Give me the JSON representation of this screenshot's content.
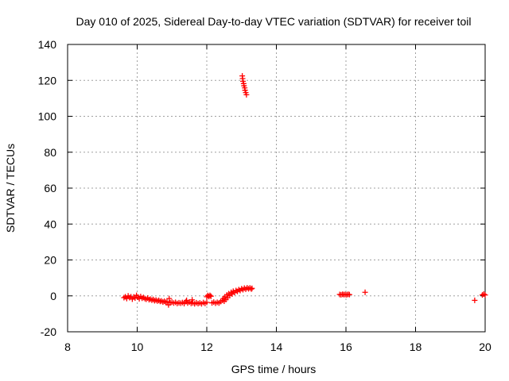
{
  "chart_data": {
    "type": "scatter",
    "title": "Day 010 of 2025, Sidereal Day-to-day VTEC variation (SDTVAR) for receiver toil",
    "xlabel": "GPS time / hours",
    "ylabel": "SDTVAR / TECUs",
    "xlim": [
      8,
      20
    ],
    "ylim": [
      -20,
      140
    ],
    "xticks": [
      8,
      10,
      12,
      14,
      16,
      18,
      20
    ],
    "yticks": [
      -20,
      0,
      20,
      40,
      60,
      80,
      100,
      120,
      140
    ],
    "grid": true,
    "marker": "+",
    "colors": {
      "marker": "#ff0000",
      "grid": "#a0a0a0",
      "axis": "#000000"
    },
    "series": [
      {
        "name": "SDTVAR",
        "points": [
          [
            9.62,
            -1.0
          ],
          [
            9.66,
            -0.5
          ],
          [
            9.7,
            -1.5
          ],
          [
            9.74,
            0.0
          ],
          [
            9.78,
            -1.0
          ],
          [
            9.82,
            -0.5
          ],
          [
            9.86,
            -1.8
          ],
          [
            9.9,
            -0.6
          ],
          [
            9.94,
            -1.2
          ],
          [
            9.98,
            0.3
          ],
          [
            10.02,
            -0.8
          ],
          [
            10.06,
            -1.6
          ],
          [
            10.1,
            -0.4
          ],
          [
            10.14,
            -1.3
          ],
          [
            10.18,
            -0.9
          ],
          [
            10.22,
            -1.5
          ],
          [
            10.26,
            -1.9
          ],
          [
            10.3,
            -1.2
          ],
          [
            10.34,
            -2.1
          ],
          [
            10.38,
            -1.8
          ],
          [
            10.42,
            -2.4
          ],
          [
            10.46,
            -2.0
          ],
          [
            10.5,
            -2.7
          ],
          [
            10.54,
            -2.3
          ],
          [
            10.58,
            -2.9
          ],
          [
            10.62,
            -2.5
          ],
          [
            10.66,
            -3.1
          ],
          [
            10.7,
            -2.8
          ],
          [
            10.74,
            -3.4
          ],
          [
            10.78,
            -3.0
          ],
          [
            10.82,
            -3.6
          ],
          [
            10.86,
            -3.2
          ],
          [
            10.9,
            -5.0
          ],
          [
            10.92,
            -1.5
          ],
          [
            10.95,
            -3.8
          ],
          [
            11.0,
            -3.5
          ],
          [
            11.05,
            -4.0
          ],
          [
            11.1,
            -3.6
          ],
          [
            11.15,
            -4.2
          ],
          [
            11.2,
            -3.8
          ],
          [
            11.25,
            -4.1
          ],
          [
            11.3,
            -3.7
          ],
          [
            11.35,
            -4.3
          ],
          [
            11.4,
            -3.2
          ],
          [
            11.42,
            -2.5
          ],
          [
            11.45,
            -4.0
          ],
          [
            11.5,
            -3.4
          ],
          [
            11.55,
            -4.2
          ],
          [
            11.58,
            -2.2
          ],
          [
            11.6,
            -3.9
          ],
          [
            11.65,
            -4.4
          ],
          [
            11.7,
            -3.8
          ],
          [
            11.75,
            -4.3
          ],
          [
            11.8,
            -3.9
          ],
          [
            11.85,
            -4.4
          ],
          [
            11.9,
            -3.7
          ],
          [
            11.95,
            -4.2
          ],
          [
            12.0,
            -3.6
          ],
          [
            12.0,
            -0.5
          ],
          [
            12.03,
            0.2
          ],
          [
            12.06,
            -0.4
          ],
          [
            12.09,
            0.3
          ],
          [
            12.12,
            -0.2
          ],
          [
            12.15,
            -3.9
          ],
          [
            12.2,
            -3.5
          ],
          [
            12.25,
            -4.1
          ],
          [
            12.3,
            -3.6
          ],
          [
            12.35,
            -4.0
          ],
          [
            12.4,
            -3.2
          ],
          [
            12.45,
            -2.5
          ],
          [
            12.48,
            -1.5
          ],
          [
            12.5,
            -3.0
          ],
          [
            12.52,
            -0.5
          ],
          [
            12.55,
            -2.0
          ],
          [
            12.58,
            0.5
          ],
          [
            12.6,
            -1.0
          ],
          [
            12.63,
            1.2
          ],
          [
            12.66,
            0.2
          ],
          [
            12.7,
            2.0
          ],
          [
            12.73,
            1.0
          ],
          [
            12.76,
            2.6
          ],
          [
            12.8,
            1.8
          ],
          [
            12.84,
            3.0
          ],
          [
            12.88,
            2.5
          ],
          [
            12.92,
            3.5
          ],
          [
            12.96,
            3.0
          ],
          [
            13.0,
            4.0
          ],
          [
            13.04,
            3.4
          ],
          [
            13.08,
            4.3
          ],
          [
            13.12,
            3.7
          ],
          [
            13.16,
            4.5
          ],
          [
            13.2,
            3.9
          ],
          [
            13.24,
            4.4
          ],
          [
            13.28,
            3.8
          ],
          [
            13.3,
            4.2
          ],
          [
            13.02,
            122.5
          ],
          [
            13.03,
            121.0
          ],
          [
            13.04,
            119.5
          ],
          [
            13.06,
            118.2
          ],
          [
            13.07,
            117.0
          ],
          [
            13.09,
            115.8
          ],
          [
            13.1,
            114.5
          ],
          [
            13.12,
            113.2
          ],
          [
            13.14,
            112.0
          ],
          [
            15.82,
            0.8
          ],
          [
            15.86,
            0.6
          ],
          [
            15.9,
            0.9
          ],
          [
            15.94,
            0.7
          ],
          [
            15.98,
            0.8
          ],
          [
            16.02,
            0.6
          ],
          [
            16.06,
            0.9
          ],
          [
            16.1,
            0.7
          ],
          [
            16.55,
            2.0
          ],
          [
            19.7,
            -2.5
          ],
          [
            19.92,
            0.5
          ],
          [
            19.96,
            1.0
          ],
          [
            20.0,
            0.5
          ]
        ]
      }
    ]
  }
}
